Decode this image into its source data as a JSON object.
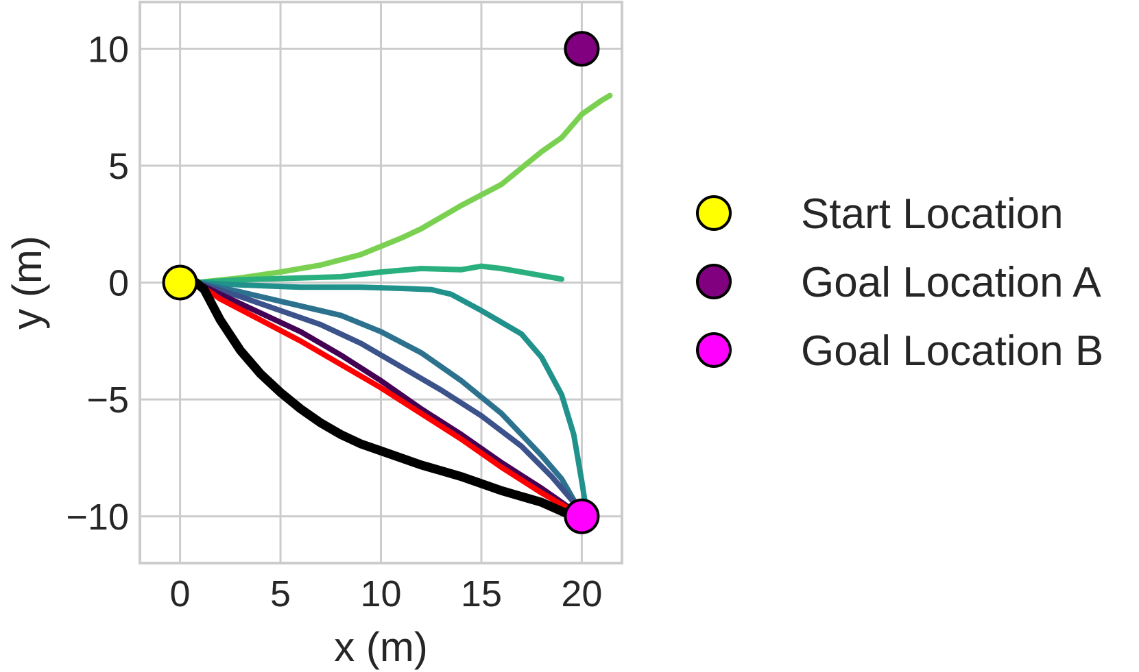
{
  "chart_data": {
    "type": "line",
    "title": "",
    "xlabel": "x (m)",
    "ylabel": "y (m)",
    "xlim": [
      -2,
      22
    ],
    "ylim": [
      -12,
      12
    ],
    "xticks": [
      0,
      5,
      10,
      15,
      20
    ],
    "yticks": [
      -10,
      -5,
      0,
      5,
      10
    ],
    "xtick_labels": [
      "0",
      "5",
      "10",
      "15",
      "20"
    ],
    "ytick_labels": [
      "−10",
      "−5",
      "0",
      "5",
      "10"
    ],
    "grid": true,
    "legend_position": "right",
    "series": [
      {
        "color": "#7ad151",
        "points": [
          [
            0.8,
            0
          ],
          [
            3,
            0.2
          ],
          [
            5,
            0.45
          ],
          [
            7,
            0.75
          ],
          [
            9,
            1.2
          ],
          [
            11,
            1.9
          ],
          [
            12,
            2.3
          ],
          [
            14,
            3.3
          ],
          [
            16,
            4.2
          ],
          [
            17,
            4.9
          ],
          [
            18,
            5.6
          ],
          [
            19,
            6.2
          ],
          [
            20,
            7.2
          ],
          [
            21,
            7.8
          ],
          [
            21.4,
            8.0
          ]
        ]
      },
      {
        "color": "#2ab07f",
        "points": [
          [
            0.8,
            0
          ],
          [
            3,
            0.12
          ],
          [
            6,
            0.2
          ],
          [
            8,
            0.25
          ],
          [
            10,
            0.45
          ],
          [
            12,
            0.6
          ],
          [
            14,
            0.55
          ],
          [
            15,
            0.7
          ],
          [
            16,
            0.6
          ],
          [
            17,
            0.45
          ],
          [
            18,
            0.3
          ],
          [
            19,
            0.15
          ]
        ]
      },
      {
        "color": "#21918c",
        "points": [
          [
            0.8,
            0
          ],
          [
            3,
            -0.1
          ],
          [
            6,
            -0.2
          ],
          [
            9,
            -0.2
          ],
          [
            11,
            -0.25
          ],
          [
            12.5,
            -0.3
          ],
          [
            13.5,
            -0.5
          ],
          [
            15,
            -1.2
          ],
          [
            16,
            -1.7
          ],
          [
            17,
            -2.2
          ],
          [
            18,
            -3.2
          ],
          [
            19,
            -4.8
          ],
          [
            19.6,
            -6.5
          ],
          [
            20,
            -8.5
          ],
          [
            20.2,
            -9.6
          ]
        ]
      },
      {
        "color": "#2c728e",
        "points": [
          [
            0.8,
            0
          ],
          [
            3,
            -0.4
          ],
          [
            5,
            -0.8
          ],
          [
            8,
            -1.4
          ],
          [
            10,
            -2.1
          ],
          [
            12,
            -3.0
          ],
          [
            13,
            -3.6
          ],
          [
            14,
            -4.2
          ],
          [
            16,
            -5.6
          ],
          [
            17,
            -6.5
          ],
          [
            18,
            -7.4
          ],
          [
            19,
            -8.4
          ],
          [
            19.6,
            -9.3
          ],
          [
            20,
            -9.9
          ]
        ]
      },
      {
        "color": "#3b528b",
        "points": [
          [
            0.8,
            0
          ],
          [
            3,
            -0.6
          ],
          [
            5,
            -1.2
          ],
          [
            7,
            -1.8
          ],
          [
            9,
            -2.6
          ],
          [
            11,
            -3.6
          ],
          [
            13,
            -4.6
          ],
          [
            15,
            -5.7
          ],
          [
            17,
            -7.0
          ],
          [
            18.5,
            -8.3
          ],
          [
            19.5,
            -9.3
          ],
          [
            20,
            -9.9
          ]
        ]
      },
      {
        "color": "#440154",
        "points": [
          [
            0.8,
            0
          ],
          [
            2,
            -0.5
          ],
          [
            4,
            -1.3
          ],
          [
            6,
            -2.1
          ],
          [
            8,
            -3.1
          ],
          [
            10,
            -4.2
          ],
          [
            12,
            -5.4
          ],
          [
            14,
            -6.5
          ],
          [
            16,
            -7.7
          ],
          [
            18,
            -8.8
          ],
          [
            19,
            -9.4
          ],
          [
            20,
            -10
          ]
        ]
      },
      {
        "color": "#ff0000",
        "points": [
          [
            0.8,
            0
          ],
          [
            2,
            -0.7
          ],
          [
            4,
            -1.6
          ],
          [
            6,
            -2.5
          ],
          [
            8,
            -3.5
          ],
          [
            10,
            -4.5
          ],
          [
            12,
            -5.6
          ],
          [
            14,
            -6.7
          ],
          [
            16,
            -7.9
          ],
          [
            18,
            -9.0
          ],
          [
            19,
            -9.5
          ],
          [
            20,
            -10
          ]
        ]
      },
      {
        "color": "#000000",
        "points": [
          [
            0,
            0
          ],
          [
            0.8,
            0
          ],
          [
            1.2,
            -0.3
          ],
          [
            2,
            -1.6
          ],
          [
            3,
            -2.9
          ],
          [
            4,
            -3.9
          ],
          [
            5,
            -4.7
          ],
          [
            6,
            -5.4
          ],
          [
            7,
            -6.0
          ],
          [
            8,
            -6.5
          ],
          [
            9,
            -6.9
          ],
          [
            10,
            -7.2
          ],
          [
            12,
            -7.8
          ],
          [
            14,
            -8.3
          ],
          [
            16,
            -8.9
          ],
          [
            18,
            -9.4
          ],
          [
            19.3,
            -9.9
          ]
        ]
      }
    ],
    "markers": [
      {
        "name": "Start Location",
        "x": 0,
        "y": 0,
        "color": "#ffff00"
      },
      {
        "name": "Goal Location A",
        "x": 20,
        "y": 10,
        "color": "#800080"
      },
      {
        "name": "Goal Location B",
        "x": 20,
        "y": -10,
        "color": "#ff00ff"
      }
    ]
  }
}
